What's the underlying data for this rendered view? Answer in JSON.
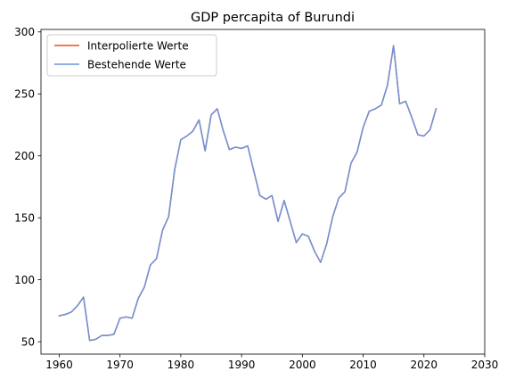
{
  "chart_data": {
    "type": "line",
    "title": "GDP percapita of Burundi",
    "xlabel": "",
    "ylabel": "",
    "xlim": [
      1957,
      2030
    ],
    "ylim": [
      40,
      302
    ],
    "xticks": [
      1960,
      1970,
      1980,
      1990,
      2000,
      2010,
      2020,
      2030
    ],
    "yticks": [
      50,
      100,
      150,
      200,
      250,
      300
    ],
    "grid": false,
    "legend_position": "top-left",
    "x": [
      1960,
      1961,
      1962,
      1963,
      1964,
      1965,
      1966,
      1967,
      1968,
      1969,
      1970,
      1971,
      1972,
      1973,
      1974,
      1975,
      1976,
      1977,
      1978,
      1979,
      1980,
      1981,
      1982,
      1983,
      1984,
      1985,
      1986,
      1987,
      1988,
      1989,
      1990,
      1991,
      1992,
      1993,
      1994,
      1995,
      1996,
      1997,
      1998,
      1999,
      2000,
      2001,
      2002,
      2003,
      2004,
      2005,
      2006,
      2007,
      2008,
      2009,
      2010,
      2011,
      2012,
      2013,
      2014,
      2015,
      2016,
      2017,
      2018,
      2019,
      2020,
      2021,
      2022
    ],
    "series": [
      {
        "name": "Interpolierte Werte",
        "color": "#e8501f",
        "values": [
          71,
          72,
          74,
          79,
          86,
          51,
          52,
          55,
          55,
          56,
          69,
          70,
          69,
          85,
          94,
          112,
          117,
          140,
          151,
          189,
          213,
          216,
          220,
          229,
          204,
          233,
          238,
          220,
          205,
          207,
          206,
          208,
          188,
          168,
          165,
          168,
          147,
          164,
          147,
          130,
          137,
          135,
          123,
          114,
          129,
          151,
          166,
          171,
          194,
          203,
          223,
          236,
          238,
          241,
          257,
          289,
          242,
          244,
          231,
          217,
          216,
          221,
          238
        ]
      },
      {
        "name": "Bestehende Werte",
        "color": "#6f93dc",
        "values": [
          71,
          72,
          74,
          79,
          86,
          51,
          52,
          55,
          55,
          56,
          69,
          70,
          69,
          85,
          94,
          112,
          117,
          140,
          151,
          189,
          213,
          216,
          220,
          229,
          204,
          233,
          238,
          220,
          205,
          207,
          206,
          208,
          188,
          168,
          165,
          168,
          147,
          164,
          147,
          130,
          137,
          135,
          123,
          114,
          129,
          151,
          166,
          171,
          194,
          203,
          223,
          236,
          238,
          241,
          257,
          289,
          242,
          244,
          231,
          217,
          216,
          221,
          238
        ]
      }
    ]
  }
}
